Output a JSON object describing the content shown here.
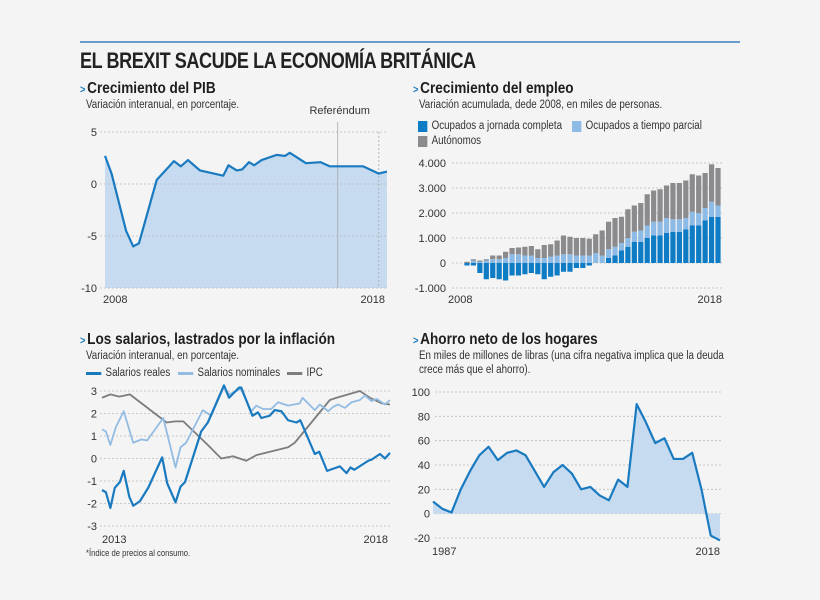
{
  "header": {
    "title": "EL BREXIT SACUDE LA ECONOMÍA BRITÁNICA"
  },
  "colors": {
    "accent": "#1a7ac0",
    "area_fill": "#c6dbf0",
    "full_time": "#0e7bc5",
    "part_time": "#8dbbe6",
    "self_employed": "#8b8b8d",
    "real_wages": "#1a7ac0",
    "nominal_wages": "#93bce3",
    "ipc": "#7d7d7d",
    "rule": "#6b9cc9"
  },
  "footnote": "*Índice de precios al consumo.",
  "chart_data": [
    {
      "type": "area",
      "title": "Crecimiento del PIB",
      "subtitle": "Variación interanual, en porcentaje.",
      "xlim": [
        2008,
        2018.3
      ],
      "ylim": [
        -10,
        5
      ],
      "grid": true,
      "yticks": [
        5,
        0,
        -5,
        -10
      ],
      "ytick_labels": [
        "5",
        "0",
        "-5",
        "-10"
      ],
      "xticks": [
        2008,
        2018
      ],
      "xtick_labels": [
        "2008",
        "2018"
      ],
      "annotation": {
        "label": "Referéndum",
        "x": 2016.5
      },
      "x": [
        2008.0,
        2008.24,
        2008.77,
        2009.03,
        2009.24,
        2009.89,
        2010.52,
        2010.77,
        2011.03,
        2011.47,
        2012.32,
        2012.51,
        2012.81,
        2013.01,
        2013.26,
        2013.45,
        2013.72,
        2014.27,
        2014.57,
        2014.75,
        2015.34,
        2015.87,
        2016.21,
        2017.43,
        2018.0,
        2018.3
      ],
      "y": [
        2.7,
        1.0,
        -4.5,
        -6.0,
        -5.7,
        0.4,
        2.2,
        1.7,
        2.3,
        1.3,
        0.8,
        1.8,
        1.3,
        1.4,
        2.1,
        1.8,
        2.3,
        2.8,
        2.7,
        3.0,
        2.0,
        2.1,
        1.7,
        1.7,
        1.0,
        1.2
      ]
    },
    {
      "type": "bar",
      "stacked": true,
      "title": "Crecimiento del empleo",
      "subtitle": "Variación acumulada, dede 2008, en miles de personas.",
      "ylim": [
        -1000,
        4000
      ],
      "grid": true,
      "yticks": [
        4000,
        3000,
        2000,
        1000,
        0,
        -1000
      ],
      "ytick_labels": [
        "4.000",
        "3.000",
        "2.000",
        "1.000",
        "0",
        "-1.000"
      ],
      "xtick_labels": [
        "2008",
        "2018"
      ],
      "legend": "top-left",
      "series": [
        {
          "name": "Ocupados a jornada completa",
          "values": [
            -100,
            -100,
            -400,
            -650,
            -600,
            -650,
            -700,
            -500,
            -500,
            -450,
            -400,
            -450,
            -650,
            -550,
            -500,
            -350,
            -350,
            -200,
            -200,
            -100,
            0,
            0,
            200,
            300,
            500,
            650,
            850,
            850,
            1000,
            1100,
            1100,
            1200,
            1250,
            1250,
            1350,
            1500,
            1500,
            1700,
            1850,
            1850
          ]
        },
        {
          "name": "Ocupados a tiempo parcial",
          "values": [
            0,
            100,
            50,
            100,
            150,
            150,
            200,
            350,
            350,
            300,
            300,
            200,
            200,
            250,
            300,
            350,
            350,
            300,
            300,
            300,
            400,
            300,
            350,
            350,
            300,
            350,
            400,
            450,
            500,
            550,
            550,
            600,
            500,
            500,
            450,
            550,
            500,
            500,
            600,
            450
          ]
        },
        {
          "name": "Autónomos",
          "values": [
            50,
            50,
            50,
            50,
            150,
            150,
            250,
            250,
            270,
            350,
            380,
            350,
            520,
            500,
            600,
            750,
            700,
            700,
            700,
            670,
            750,
            1000,
            1100,
            1150,
            1050,
            1150,
            1050,
            1100,
            1250,
            1250,
            1300,
            1300,
            1450,
            1450,
            1500,
            1500,
            1500,
            1400,
            1500,
            1500
          ]
        }
      ]
    },
    {
      "type": "line",
      "title": "Los salarios, lastrados por la inflación",
      "subtitle": "Variación interanual, en porcentaje.",
      "xlim": [
        2013,
        2018.17
      ],
      "ylim": [
        -3,
        3
      ],
      "grid": true,
      "yticks": [
        3,
        2,
        1,
        0,
        -1,
        -2,
        -3
      ],
      "ytick_labels": [
        "3",
        "2",
        "1",
        "0",
        "-1",
        "-2",
        "-3"
      ],
      "xtick_labels": [
        "2013",
        "2018"
      ],
      "legend": "top",
      "series": [
        {
          "name": "Salarios reales",
          "x": [
            2013.0,
            2013.07,
            2013.15,
            2013.23,
            2013.32,
            2013.39,
            2013.49,
            2013.56,
            2013.68,
            2013.83,
            2014.08,
            2014.17,
            2014.32,
            2014.41,
            2014.49,
            2014.78,
            2014.9,
            2015.19,
            2015.28,
            2015.46,
            2015.5,
            2015.7,
            2015.8,
            2015.86,
            2016.01,
            2016.1,
            2016.22,
            2016.34,
            2016.49,
            2016.56,
            2016.82,
            2016.9,
            2017.04,
            2017.27,
            2017.39,
            2017.46,
            2017.53,
            2017.78,
            2017.84,
            2017.99,
            2018.08,
            2018.17
          ],
          "y": [
            -1.4,
            -1.5,
            -2.2,
            -1.3,
            -1.05,
            -0.55,
            -1.7,
            -2.1,
            -1.9,
            -1.3,
            0.05,
            -1.1,
            -1.95,
            -1.25,
            -1.05,
            1.2,
            1.6,
            3.25,
            2.7,
            3.15,
            3.15,
            1.9,
            2.05,
            1.8,
            1.9,
            2.15,
            2.1,
            1.7,
            1.6,
            1.7,
            0.2,
            0.3,
            -0.55,
            -0.35,
            -0.65,
            -0.4,
            -0.5,
            -0.1,
            -0.05,
            0.2,
            0.0,
            0.25
          ]
        },
        {
          "name": "Salarios nominales",
          "x": [
            2013.0,
            2013.07,
            2013.15,
            2013.25,
            2013.39,
            2013.56,
            2013.71,
            2013.81,
            2014.1,
            2014.32,
            2014.41,
            2014.51,
            2014.81,
            2014.96,
            2015.19,
            2015.28,
            2015.38,
            2015.49,
            2015.68,
            2015.77,
            2015.89,
            2016.04,
            2016.16,
            2016.34,
            2016.55,
            2016.6,
            2016.82,
            2016.91,
            2017.06,
            2017.15,
            2017.24,
            2017.36,
            2017.48,
            2017.63,
            2017.72,
            2017.84,
            2017.93,
            2018.08,
            2018.17
          ],
          "y": [
            1.3,
            1.2,
            0.6,
            1.4,
            2.1,
            0.7,
            0.85,
            0.8,
            1.8,
            -0.4,
            0.5,
            0.7,
            2.15,
            1.9,
            3.2,
            2.85,
            2.95,
            3.1,
            2.1,
            2.35,
            2.2,
            2.2,
            2.5,
            2.35,
            2.45,
            2.7,
            2.15,
            2.4,
            2.1,
            2.3,
            2.4,
            2.25,
            2.5,
            2.6,
            2.8,
            2.55,
            2.65,
            2.4,
            2.6
          ]
        },
        {
          "name": "IPC",
          "x": [
            2013.0,
            2013.15,
            2013.31,
            2013.5,
            2014.16,
            2014.31,
            2014.46,
            2014.9,
            2015.14,
            2015.35,
            2015.59,
            2015.77,
            2016.34,
            2016.46,
            2017.09,
            2017.21,
            2017.63,
            2017.81,
            2018.02,
            2018.17
          ],
          "y": [
            2.7,
            2.85,
            2.75,
            2.85,
            1.6,
            1.65,
            1.65,
            0.6,
            0.0,
            0.1,
            -0.1,
            0.15,
            0.5,
            0.7,
            2.6,
            2.7,
            3.0,
            2.7,
            2.45,
            2.4
          ]
        }
      ]
    },
    {
      "type": "area",
      "title": "Ahorro neto de los hogares",
      "subtitle": "En miles de millones de libras (una cifra negativa implica que la deuda crece más que el ahorro).",
      "xlim": [
        1987,
        2018
      ],
      "ylim": [
        -20,
        100
      ],
      "grid": true,
      "yticks": [
        100,
        80,
        60,
        40,
        20,
        0,
        -20
      ],
      "ytick_labels": [
        "100",
        "80",
        "60",
        "40",
        "20",
        "0",
        "-20"
      ],
      "xtick_labels": [
        "1987",
        "2018"
      ],
      "x": [
        1987,
        1988,
        1989,
        1990,
        1991,
        1992,
        1993,
        1994,
        1995,
        1996,
        1997,
        1998,
        1999,
        2000,
        2001,
        2002,
        2003,
        2004,
        2005,
        2006,
        2007,
        2008,
        2009,
        2010,
        2011,
        2012,
        2013,
        2014,
        2015,
        2016,
        2017,
        2018
      ],
      "y": [
        10,
        4,
        1,
        20,
        35,
        48,
        55,
        44,
        50,
        52,
        48,
        35,
        22,
        34,
        40,
        33,
        20,
        22,
        15,
        11,
        28,
        22,
        90,
        75,
        58,
        62,
        45,
        45,
        50,
        20,
        -18,
        -22
      ]
    }
  ]
}
